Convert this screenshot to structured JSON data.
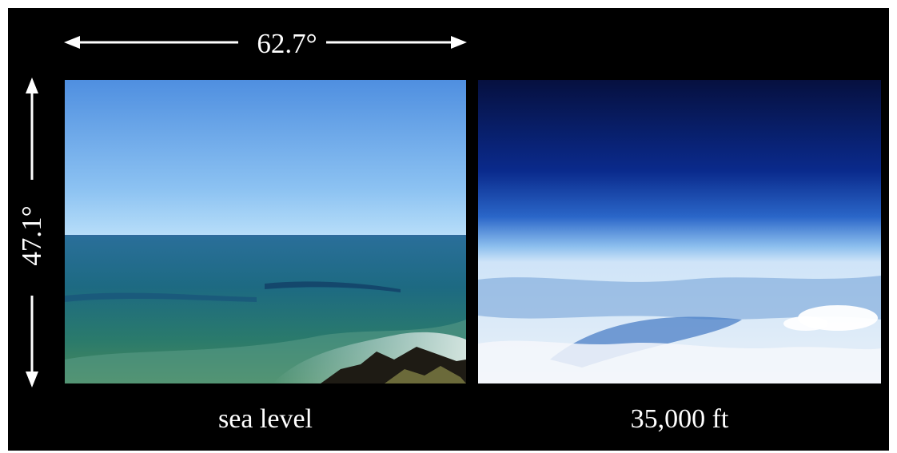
{
  "figure": {
    "horizontal_angle": "62.7°",
    "vertical_angle": "47.1°",
    "left_caption": "sea level",
    "right_caption": "35,000 ft"
  },
  "colors": {
    "background": "#000000",
    "text": "#ffffff",
    "sea_sky_top": "#4f8fe0",
    "sea_water": "#1d6a82",
    "high_sky_top": "#06103f",
    "clouds": "#e8f0f8"
  }
}
